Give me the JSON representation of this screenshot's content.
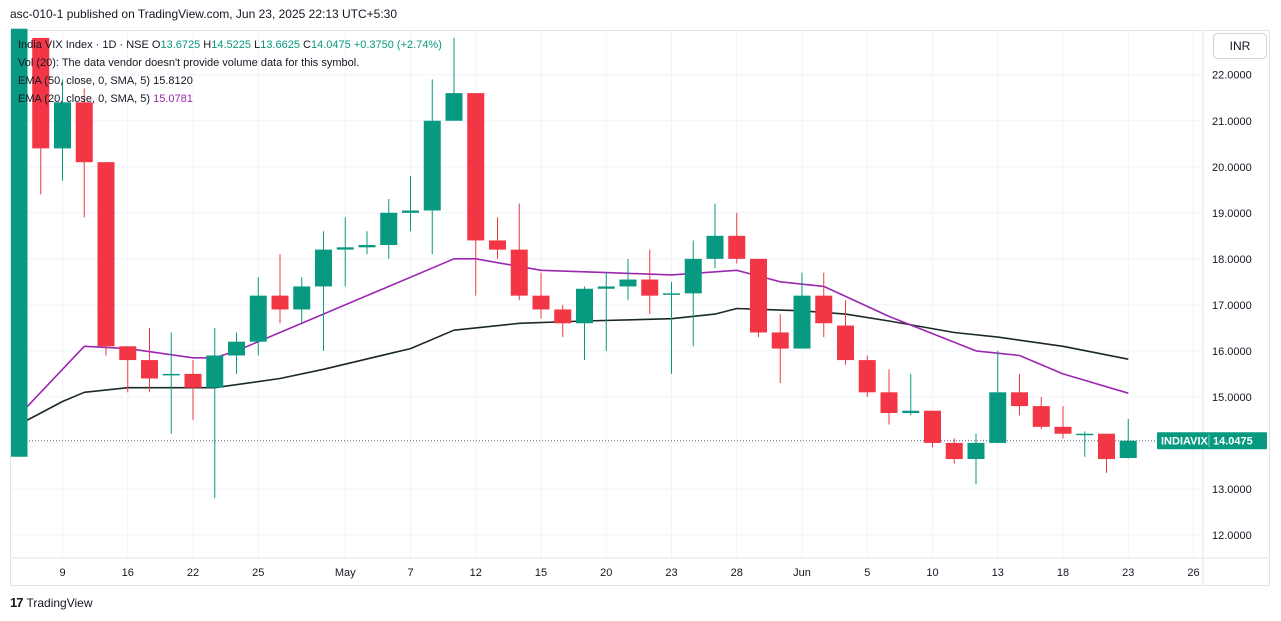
{
  "header": {
    "publish_text": "asc-010-1 published on TradingView.com, Jun 23, 2025 22:13 UTC+5:30"
  },
  "legend": {
    "symbol": "India VIX Index · 1D · NSE",
    "o_label": "O",
    "o_value": "13.6725",
    "h_label": "H",
    "h_value": "14.5225",
    "l_label": "L",
    "l_value": "13.6625",
    "c_label": "C",
    "c_value": "14.0475",
    "change": "+0.3750 (+2.74%)",
    "vol_text": "Vol (20): The data vendor doesn't provide volume data for this symbol.",
    "ema50_name": "EMA (50, close, 0, SMA, 5)",
    "ema50_value": "15.8120",
    "ema20_name": "EMA (20, close, 0, SMA, 5)",
    "ema20_value": "15.0781"
  },
  "currency": "INR",
  "footer": {
    "logo": "17",
    "brand": "TradingView"
  },
  "colors": {
    "up": "#089981",
    "down": "#f23645",
    "ema20": "#9c27b0",
    "ema50": "#1b2a26",
    "grid": "#f0f3fa",
    "last_label": "#089981"
  },
  "chart_data": {
    "type": "candlestick",
    "ylim": [
      11.5,
      22.95
    ],
    "yticks": [
      "12.0000",
      "13.0000",
      "14.0000",
      "15.0000",
      "16.0000",
      "17.0000",
      "18.0000",
      "19.0000",
      "20.0000",
      "21.0000",
      "22.0000"
    ],
    "xticks": [
      {
        "label": "9",
        "index": 2
      },
      {
        "label": "16",
        "index": 5
      },
      {
        "label": "22",
        "index": 8
      },
      {
        "label": "25",
        "index": 11
      },
      {
        "label": "May",
        "index": 15
      },
      {
        "label": "7",
        "index": 18
      },
      {
        "label": "12",
        "index": 21
      },
      {
        "label": "15",
        "index": 24
      },
      {
        "label": "20",
        "index": 27
      },
      {
        "label": "23",
        "index": 30
      },
      {
        "label": "28",
        "index": 33
      },
      {
        "label": "Jun",
        "index": 36
      },
      {
        "label": "5",
        "index": 39
      },
      {
        "label": "10",
        "index": 42
      },
      {
        "label": "13",
        "index": 45
      },
      {
        "label": "18",
        "index": 48
      },
      {
        "label": "23",
        "index": 51
      },
      {
        "label": "26",
        "index": 54
      }
    ],
    "candles": [
      {
        "o": 13.7,
        "h": 23.0,
        "l": 13.7,
        "c": 23.0
      },
      {
        "o": 22.8,
        "h": 22.8,
        "l": 19.4,
        "c": 20.4
      },
      {
        "o": 20.4,
        "h": 21.9,
        "l": 19.7,
        "c": 21.4
      },
      {
        "o": 21.4,
        "h": 21.7,
        "l": 18.9,
        "c": 20.1
      },
      {
        "o": 20.1,
        "h": 20.1,
        "l": 15.9,
        "c": 16.1
      },
      {
        "o": 16.1,
        "h": 16.1,
        "l": 15.1,
        "c": 15.8
      },
      {
        "o": 15.8,
        "h": 16.5,
        "l": 15.1,
        "c": 15.4
      },
      {
        "o": 15.5,
        "h": 16.4,
        "l": 14.2,
        "c": 15.5
      },
      {
        "o": 15.5,
        "h": 15.8,
        "l": 14.5,
        "c": 15.2
      },
      {
        "o": 15.2,
        "h": 16.5,
        "l": 12.8,
        "c": 15.9
      },
      {
        "o": 15.9,
        "h": 16.4,
        "l": 15.5,
        "c": 16.2
      },
      {
        "o": 16.2,
        "h": 17.6,
        "l": 15.9,
        "c": 17.2
      },
      {
        "o": 17.2,
        "h": 18.1,
        "l": 16.6,
        "c": 16.9
      },
      {
        "o": 16.9,
        "h": 17.6,
        "l": 16.6,
        "c": 17.4
      },
      {
        "o": 17.4,
        "h": 18.6,
        "l": 16.0,
        "c": 18.2
      },
      {
        "o": 18.2,
        "h": 18.9,
        "l": 17.4,
        "c": 18.25
      },
      {
        "o": 18.25,
        "h": 18.6,
        "l": 18.1,
        "c": 18.3
      },
      {
        "o": 18.3,
        "h": 19.3,
        "l": 18.0,
        "c": 19.0
      },
      {
        "o": 19.0,
        "h": 19.8,
        "l": 18.6,
        "c": 19.05
      },
      {
        "o": 19.05,
        "h": 21.9,
        "l": 18.1,
        "c": 21.0
      },
      {
        "o": 21.0,
        "h": 22.8,
        "l": 21.0,
        "c": 21.6
      },
      {
        "o": 21.6,
        "h": 21.6,
        "l": 17.2,
        "c": 18.4
      },
      {
        "o": 18.4,
        "h": 18.9,
        "l": 18.0,
        "c": 18.2
      },
      {
        "o": 18.2,
        "h": 19.2,
        "l": 17.1,
        "c": 17.2
      },
      {
        "o": 17.2,
        "h": 17.7,
        "l": 16.7,
        "c": 16.9
      },
      {
        "o": 16.9,
        "h": 17.0,
        "l": 16.3,
        "c": 16.6
      },
      {
        "o": 16.6,
        "h": 17.4,
        "l": 15.8,
        "c": 17.35
      },
      {
        "o": 17.35,
        "h": 17.7,
        "l": 16.0,
        "c": 17.4
      },
      {
        "o": 17.4,
        "h": 18.0,
        "l": 17.1,
        "c": 17.55
      },
      {
        "o": 17.55,
        "h": 18.2,
        "l": 16.8,
        "c": 17.2
      },
      {
        "o": 17.25,
        "h": 17.5,
        "l": 15.5,
        "c": 17.25
      },
      {
        "o": 17.25,
        "h": 18.4,
        "l": 16.1,
        "c": 18.0
      },
      {
        "o": 18.0,
        "h": 19.2,
        "l": 17.8,
        "c": 18.5
      },
      {
        "o": 18.5,
        "h": 19.0,
        "l": 17.9,
        "c": 18.0
      },
      {
        "o": 18.0,
        "h": 18.0,
        "l": 16.3,
        "c": 16.4
      },
      {
        "o": 16.4,
        "h": 16.8,
        "l": 15.3,
        "c": 16.05
      },
      {
        "o": 16.05,
        "h": 17.7,
        "l": 16.05,
        "c": 17.2
      },
      {
        "o": 17.2,
        "h": 17.7,
        "l": 16.3,
        "c": 16.6
      },
      {
        "o": 16.55,
        "h": 17.1,
        "l": 15.7,
        "c": 15.8
      },
      {
        "o": 15.8,
        "h": 15.9,
        "l": 15.0,
        "c": 15.1
      },
      {
        "o": 15.1,
        "h": 15.6,
        "l": 14.4,
        "c": 14.65
      },
      {
        "o": 14.65,
        "h": 15.5,
        "l": 14.6,
        "c": 14.7
      },
      {
        "o": 14.7,
        "h": 14.7,
        "l": 13.9,
        "c": 14.0
      },
      {
        "o": 14.0,
        "h": 14.1,
        "l": 13.55,
        "c": 13.65
      },
      {
        "o": 13.65,
        "h": 14.2,
        "l": 13.1,
        "c": 14.0
      },
      {
        "o": 14.0,
        "h": 16.0,
        "l": 14.0,
        "c": 15.1
      },
      {
        "o": 15.1,
        "h": 15.5,
        "l": 14.6,
        "c": 14.8
      },
      {
        "o": 14.8,
        "h": 15.0,
        "l": 14.3,
        "c": 14.35
      },
      {
        "o": 14.35,
        "h": 14.8,
        "l": 14.1,
        "c": 14.2
      },
      {
        "o": 14.2,
        "h": 14.25,
        "l": 13.7,
        "c": 14.2
      },
      {
        "o": 14.2,
        "h": 14.2,
        "l": 13.35,
        "c": 13.65
      },
      {
        "o": 13.6725,
        "h": 14.5225,
        "l": 13.6625,
        "c": 14.0475
      }
    ],
    "ema20": [
      14.6,
      15.6,
      16.1,
      16.05,
      15.85,
      15.85,
      16.0,
      18.0,
      18.0,
      17.75,
      17.7,
      17.65,
      17.75,
      17.5,
      17.4,
      16.75,
      16.0,
      15.9,
      15.5,
      15.08
    ],
    "ema20_index": [
      0,
      2,
      3,
      5,
      8,
      9,
      10,
      20,
      21,
      24,
      27,
      30,
      33,
      35,
      37,
      40,
      44,
      46,
      48,
      51
    ],
    "ema50": [
      14.4,
      14.9,
      15.1,
      15.2,
      15.2,
      15.2,
      15.4,
      15.6,
      16.05,
      16.45,
      16.6,
      16.65,
      16.7,
      16.8,
      16.92,
      16.87,
      16.8,
      16.65,
      16.4,
      16.3,
      16.1,
      15.82
    ],
    "ema50_index": [
      0,
      2,
      3,
      5,
      8,
      9,
      12,
      14,
      18,
      20,
      23,
      26,
      30,
      32,
      33,
      36,
      38,
      40,
      43,
      45,
      48,
      51
    ],
    "last_symbol": "INDIAVIX",
    "last_value": "14.0475",
    "last_price": 14.0475
  }
}
